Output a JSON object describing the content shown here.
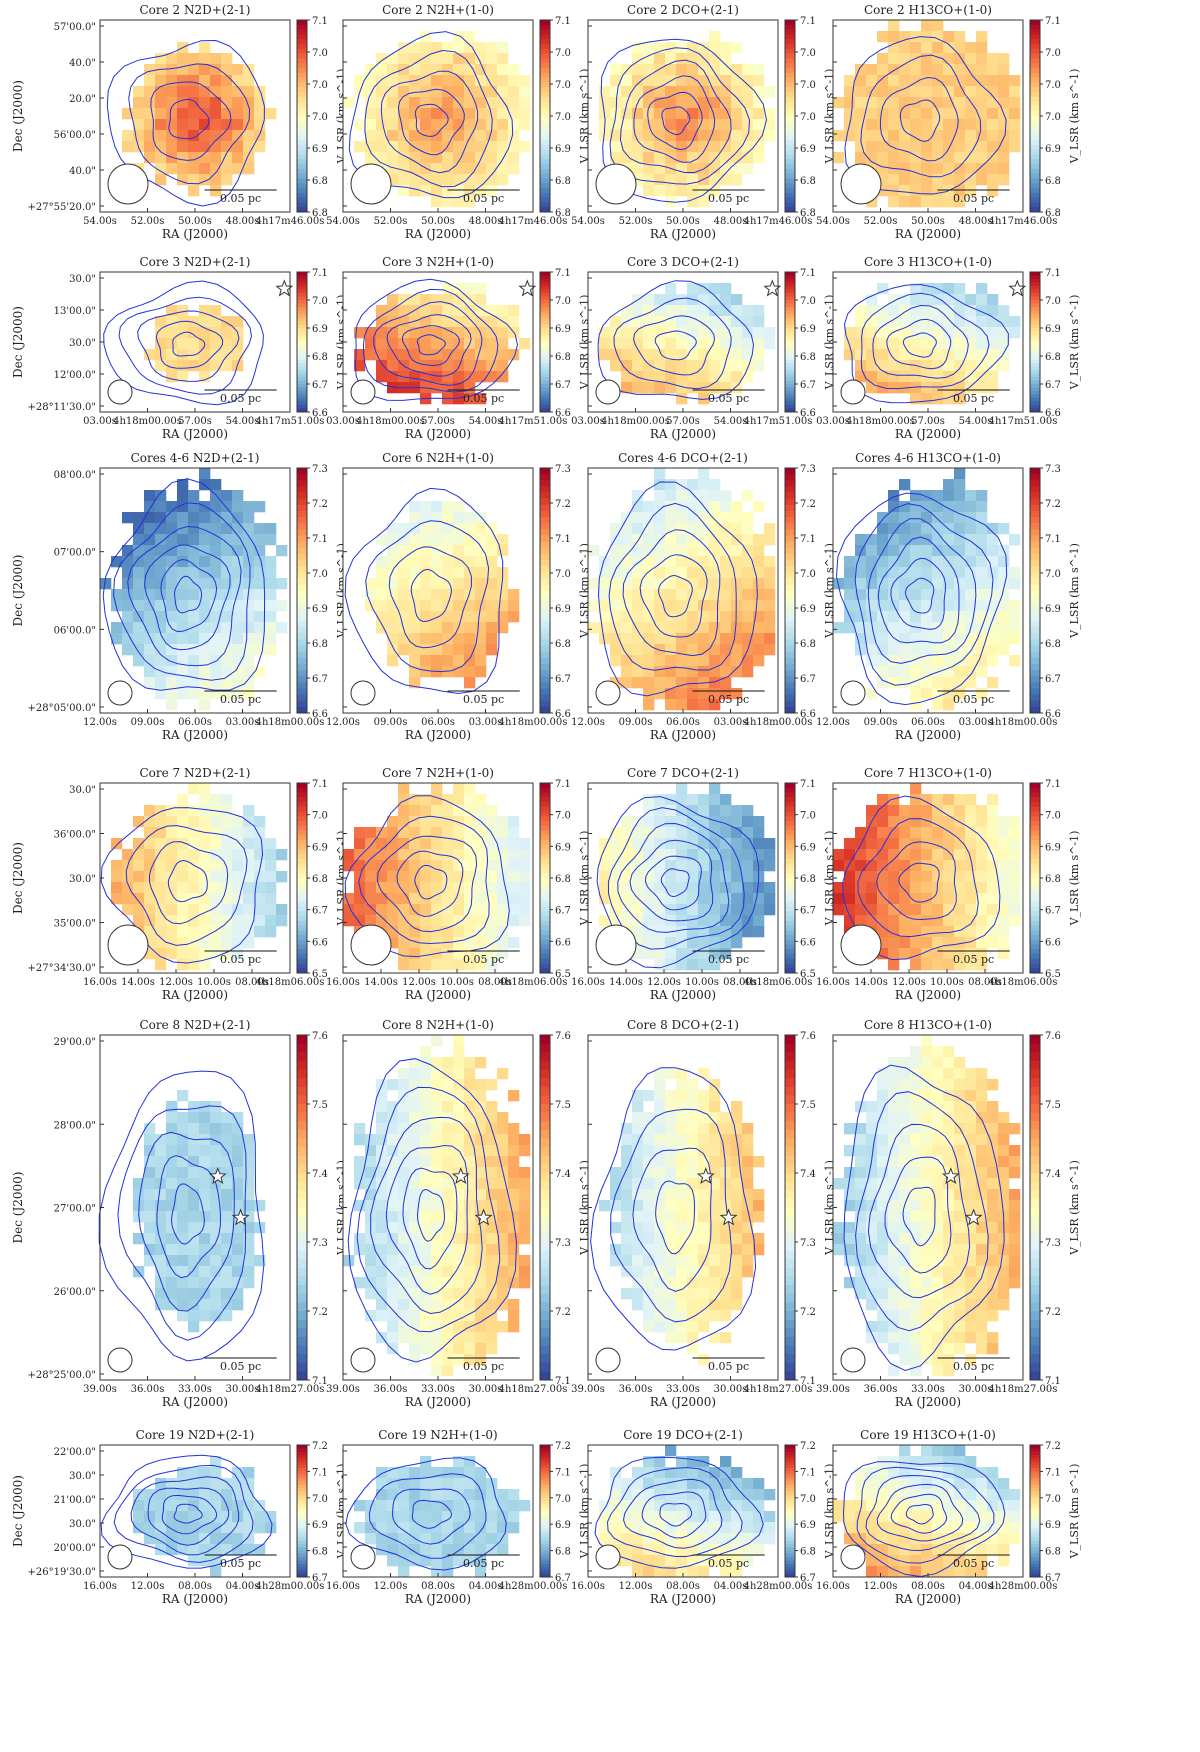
{
  "figure": {
    "ra_label": "RA (J2000)",
    "dec_label": "Dec (J2000)",
    "scalebar_label": "0.05 pc",
    "colorbar_label": "V_LSR (km s^-1)"
  },
  "colors": {
    "contour": "#2233dd",
    "cmap": [
      "#313695",
      "#4575b4",
      "#74add1",
      "#abd9e9",
      "#e0f3f8",
      "#ffffbf",
      "#fee090",
      "#fdae61",
      "#f46d43",
      "#d73027",
      "#a50026"
    ]
  },
  "chart_data": [
    {
      "type": "heatmap",
      "row": "Core 2",
      "titles": [
        "Core 2 N2D+(2-1)",
        "Core 2 N2H+(1-0)",
        "Core 2 DCO+(2-1)",
        "Core 2 H13CO+(1-0)"
      ],
      "fields": [
        0.55,
        0.85,
        0.78,
        0.95
      ],
      "mean_values": [
        7.0,
        6.97,
        6.97,
        6.99
      ],
      "gradient": [
        "radial",
        "radial",
        "radial",
        "flat"
      ],
      "beam_size": "large",
      "ra_ticks": [
        "54.00s",
        "52.00s",
        "50.00s",
        "48.00s",
        "4h17m46.00s"
      ],
      "dec_ticks": [
        "57'00.0\"",
        "40.0\"",
        "20.0\"",
        "56'00.0\"",
        "40.0\"",
        "+27°55'20.0\""
      ],
      "cbar_ticks": [
        7.1,
        7.05,
        7.0,
        6.95,
        6.9,
        6.85,
        6.8
      ],
      "vlim": [
        6.8,
        7.1
      ],
      "stars": []
    },
    {
      "type": "heatmap",
      "row": "Core 3",
      "titles": [
        "Core 3 N2D+(2-1)",
        "Core 3 N2H+(1-0)",
        "Core 3 DCO+(2-1)",
        "Core 3 H13CO+(1-0)"
      ],
      "fields": [
        0.2,
        0.7,
        0.75,
        0.8
      ],
      "mean_values": [
        6.9,
        6.95,
        6.85,
        6.85
      ],
      "gradient": [
        "flat",
        "diag",
        "diag",
        "diag"
      ],
      "beam_size": "small",
      "ra_ticks": [
        "03.00s",
        "4h18m00.00s",
        "57.00s",
        "54.00s",
        "4h17m51.00s"
      ],
      "dec_ticks": [
        "30.0\"",
        "13'00.0\"",
        "30.0\"",
        "12'00.0\"",
        "+28°11'30.0\""
      ],
      "cbar_ticks": [
        7.1,
        7.0,
        6.9,
        6.8,
        6.7,
        6.6
      ],
      "vlim": [
        6.6,
        7.1
      ],
      "stars": [
        {
          "x": 0.97,
          "y": 0.12
        }
      ]
    },
    {
      "type": "heatmap",
      "row": "Cores 4-6",
      "titles": [
        "Cores 4-6 N2D+(2-1)",
        "Core 6 N2H+(1-0)",
        "Cores 4-6 DCO+(2-1)",
        "Cores 4-6 H13CO+(1-0)"
      ],
      "fields": [
        0.8,
        0.55,
        0.9,
        0.85
      ],
      "mean_values": [
        6.8,
        7.0,
        7.0,
        6.85
      ],
      "gradient": [
        "diag",
        "diag",
        "diag",
        "diag"
      ],
      "beam_size": "small",
      "ra_ticks": [
        "12.00s",
        "09.00s",
        "06.00s",
        "03.00s",
        "4h18m00.00s"
      ],
      "dec_ticks": [
        "08'00.0\"",
        "07'00.0\"",
        "06'00.0\"",
        "+28°05'00.0\""
      ],
      "cbar_ticks": [
        7.3,
        7.2,
        7.1,
        7.0,
        6.9,
        6.8,
        6.7,
        6.6
      ],
      "vlim": [
        6.6,
        7.3
      ],
      "stars": []
    },
    {
      "type": "heatmap",
      "row": "Core 7",
      "titles": [
        "Core 7 N2D+(2-1)",
        "Core 7 N2H+(1-0)",
        "Core 7 DCO+(2-1)",
        "Core 7 H13CO+(1-0)"
      ],
      "fields": [
        0.8,
        0.95,
        0.9,
        0.95
      ],
      "mean_values": [
        6.8,
        6.85,
        6.7,
        6.9
      ],
      "gradient": [
        "horiz",
        "horiz",
        "horiz",
        "horiz"
      ],
      "beam_size": "large",
      "ra_ticks": [
        "16.00s",
        "14.00s",
        "12.00s",
        "10.00s",
        "08.00s",
        "4h18m06.00s"
      ],
      "dec_ticks": [
        "30.0\"",
        "36'00.0\"",
        "30.0\"",
        "35'00.0\"",
        "+27°34'30.0\""
      ],
      "cbar_ticks": [
        7.1,
        7.0,
        6.9,
        6.8,
        6.7,
        6.6,
        6.5
      ],
      "vlim": [
        6.5,
        7.1
      ],
      "stars": []
    },
    {
      "type": "heatmap",
      "row": "Core 8",
      "titles": [
        "Core 8 N2D+(2-1)",
        "Core 8 N2H+(1-0)",
        "Core 8 DCO+(2-1)",
        "Core 8 H13CO+(1-0)"
      ],
      "fields": [
        0.4,
        0.85,
        0.6,
        0.85
      ],
      "mean_values": [
        7.25,
        7.35,
        7.35,
        7.35
      ],
      "gradient": [
        "flat",
        "horiz",
        "horiz",
        "horiz"
      ],
      "beam_size": "small",
      "ra_ticks": [
        "39.00s",
        "36.00s",
        "33.00s",
        "30.00s",
        "4h18m27.00s"
      ],
      "dec_ticks": [
        "29'00.0\"",
        "28'00.0\"",
        "27'00.0\"",
        "26'00.0\"",
        "+28°25'00.0\""
      ],
      "cbar_ticks": [
        7.6,
        7.5,
        7.4,
        7.3,
        7.2,
        7.1
      ],
      "vlim": [
        7.1,
        7.6
      ],
      "stars": [
        {
          "x": 0.62,
          "y": 0.41
        },
        {
          "x": 0.74,
          "y": 0.53
        }
      ]
    },
    {
      "type": "heatmap",
      "row": "Core 19",
      "titles": [
        "Core 19 N2D+(2-1)",
        "Core 19 N2H+(1-0)",
        "Core 19 DCO+(2-1)",
        "Core 19 H13CO+(1-0)"
      ],
      "fields": [
        0.55,
        0.7,
        0.85,
        0.9
      ],
      "mean_values": [
        6.85,
        6.85,
        6.9,
        6.95
      ],
      "gradient": [
        "flat",
        "flat",
        "diag",
        "diag"
      ],
      "beam_size": "small",
      "ra_ticks": [
        "16.00s",
        "12.00s",
        "08.00s",
        "04.00s",
        "4h28m00.00s"
      ],
      "dec_ticks": [
        "22'00.0\"",
        "30.0\"",
        "21'00.0\"",
        "30.0\"",
        "20'00.0\"",
        "+26°19'30.0\""
      ],
      "cbar_ticks": [
        7.2,
        7.1,
        7.0,
        6.9,
        6.8,
        6.7
      ],
      "vlim": [
        6.7,
        7.2
      ],
      "stars": []
    }
  ]
}
